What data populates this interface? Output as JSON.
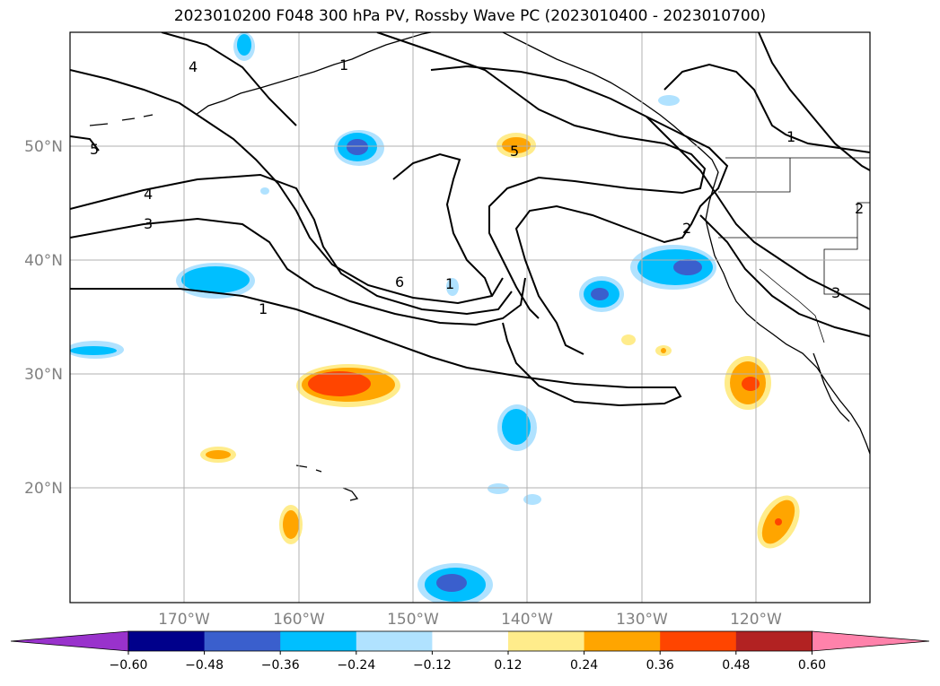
{
  "title": "2023010200 F048 300 hPa PV, Rossby Wave PC (2023010400 - 2023010700)",
  "lat_labels": [
    "50°N",
    "40°N",
    "30°N",
    "20°N"
  ],
  "lon_labels": [
    "170°W",
    "160°W",
    "150°W",
    "140°W",
    "130°W",
    "120°W"
  ],
  "contour_labels": [
    "4",
    "5",
    "4",
    "3",
    "6",
    "1",
    "1",
    "2",
    "5",
    "1",
    "1",
    "2",
    "3"
  ],
  "colorbar": {
    "ticks": [
      "−0.60",
      "−0.48",
      "−0.36",
      "−0.24",
      "−0.12",
      "0.12",
      "0.24",
      "0.36",
      "0.48",
      "0.60"
    ],
    "colors": [
      "#9932cc",
      "#00008b",
      "#3a5fcd",
      "#00bfff",
      "#b0e2ff",
      "#ffffff",
      "#ffec8b",
      "#ffa500",
      "#ff4500",
      "#b22222",
      "#ff82ab"
    ]
  }
}
